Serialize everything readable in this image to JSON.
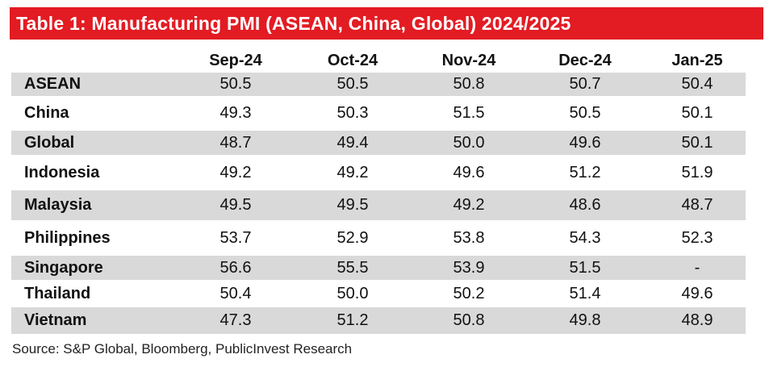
{
  "title": "Table 1: Manufacturing PMI (ASEAN, China, Global) 2024/2025",
  "columns": [
    "Sep-24",
    "Oct-24",
    "Nov-24",
    "Dec-24",
    "Jan-25"
  ],
  "rows": [
    {
      "label": "ASEAN",
      "values": [
        "50.5",
        "50.5",
        "50.8",
        "50.7",
        "50.4"
      ]
    },
    {
      "label": "China",
      "values": [
        "49.3",
        "50.3",
        "51.5",
        "50.5",
        "50.1"
      ]
    },
    {
      "label": "Global",
      "values": [
        "48.7",
        "49.4",
        "50.0",
        "49.6",
        "50.1"
      ]
    },
    {
      "label": "Indonesia",
      "values": [
        "49.2",
        "49.2",
        "49.6",
        "51.2",
        "51.9"
      ]
    },
    {
      "label": "Malaysia",
      "values": [
        "49.5",
        "49.5",
        "49.2",
        "48.6",
        "48.7"
      ]
    },
    {
      "label": "Philippines",
      "values": [
        "53.7",
        "52.9",
        "53.8",
        "54.3",
        "52.3"
      ]
    },
    {
      "label": "Singapore",
      "values": [
        "56.6",
        "55.5",
        "53.9",
        "51.5",
        "-"
      ]
    },
    {
      "label": "Thailand",
      "values": [
        "50.4",
        "50.0",
        "50.2",
        "51.4",
        "49.6"
      ]
    },
    {
      "label": "Vietnam",
      "values": [
        "47.3",
        "51.2",
        "50.8",
        "49.8",
        "48.9"
      ]
    }
  ],
  "source": "Source: S&P Global, Bloomberg, PublicInvest Research",
  "colors": {
    "title_bar": "#e31b23",
    "row_shade": "#d9d9d9"
  }
}
